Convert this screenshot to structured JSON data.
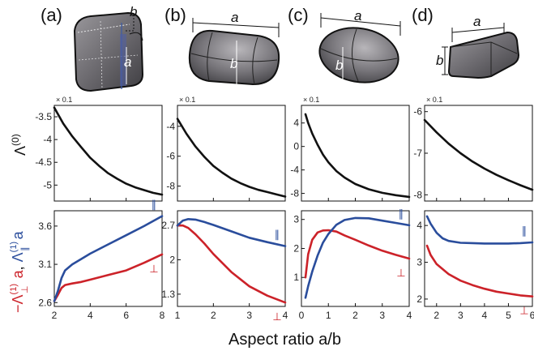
{
  "figure": {
    "panel_labels": [
      "(a)",
      "(b)",
      "(c)",
      "(d)"
    ],
    "shape_labels": {
      "a": "a",
      "b": "b"
    },
    "row0_ylabel": {
      "main": "Λ",
      "sup": "(0)"
    },
    "row1_ylabel": {
      "red_main": "−Λ",
      "red_sup": "(1)",
      "red_sub": "⊥",
      "red_tail": " a",
      "sep": ", ",
      "blue_main": "Λ",
      "blue_sup": "(1)",
      "blue_sub": "∥",
      "blue_tail": " a"
    },
    "xlabel": "Aspect ratio a/b",
    "multiplier": "× 0.1",
    "marker_parallel": "∥",
    "marker_perp": "⊥"
  },
  "colors": {
    "black": "#111111",
    "red": "#cc2229",
    "blue": "#2a4d9c",
    "shape": "#6f6d72"
  },
  "chart_data": [
    {
      "panel": "(a)",
      "row": 0,
      "type": "line",
      "xlim": [
        2,
        8
      ],
      "ylim": [
        -5.35,
        -3.25
      ],
      "yticks": [
        -3.5,
        -4,
        -4.5,
        -5
      ],
      "yticklabels": [
        "-3.5",
        "-4",
        "-4.5",
        "-5"
      ],
      "xticks": [
        2,
        4,
        6,
        8
      ],
      "multiplier": "× 0.1",
      "series": [
        {
          "color": "black",
          "x": [
            2,
            2.5,
            3,
            3.5,
            4,
            4.5,
            5,
            5.5,
            6,
            6.5,
            7,
            7.5,
            8
          ],
          "y": [
            -3.3,
            -3.65,
            -3.93,
            -4.17,
            -4.4,
            -4.58,
            -4.74,
            -4.86,
            -4.97,
            -5.05,
            -5.11,
            -5.17,
            -5.21
          ]
        }
      ]
    },
    {
      "panel": "(b)",
      "row": 0,
      "type": "line",
      "xlim": [
        1,
        4
      ],
      "ylim": [
        -9.0,
        -2.6
      ],
      "yticks": [
        -4,
        -6,
        -8
      ],
      "yticklabels": [
        "-4",
        "-6",
        "-8"
      ],
      "xticks": [
        1,
        2,
        3,
        4
      ],
      "multiplier": "× 0.1",
      "series": [
        {
          "color": "black",
          "x": [
            1,
            1.25,
            1.5,
            1.75,
            2,
            2.25,
            2.5,
            2.75,
            3,
            3.25,
            3.5,
            3.75,
            4
          ],
          "y": [
            -3.5,
            -4.5,
            -5.35,
            -6.05,
            -6.65,
            -7.1,
            -7.5,
            -7.8,
            -8.05,
            -8.25,
            -8.4,
            -8.55,
            -8.7
          ]
        }
      ]
    },
    {
      "panel": "(c)",
      "row": 0,
      "type": "line",
      "xlim": [
        0,
        4
      ],
      "ylim": [
        -9.3,
        7.0
      ],
      "yticks": [
        4,
        0,
        -4,
        -8
      ],
      "yticklabels": [
        "4",
        "0",
        "-4",
        "-8"
      ],
      "xticks": [
        0,
        1,
        2,
        3,
        4
      ],
      "multiplier": "× 0.1",
      "series": [
        {
          "color": "black",
          "x": [
            0.15,
            0.25,
            0.4,
            0.6,
            0.8,
            1.0,
            1.3,
            1.6,
            2.0,
            2.5,
            3.0,
            3.5,
            4.0
          ],
          "y": [
            5.5,
            4.0,
            2.2,
            0.3,
            -1.4,
            -2.7,
            -4.2,
            -5.3,
            -6.4,
            -7.3,
            -7.9,
            -8.3,
            -8.6
          ]
        }
      ]
    },
    {
      "panel": "(d)",
      "row": 0,
      "type": "line",
      "xlim": [
        1.5,
        6
      ],
      "ylim": [
        -8.15,
        -5.85
      ],
      "yticks": [
        -6,
        -7,
        -8
      ],
      "yticklabels": [
        "-6",
        "-7",
        "-8"
      ],
      "xticks": [
        2,
        3,
        4,
        5,
        6
      ],
      "multiplier": "× 0.1",
      "series": [
        {
          "color": "black",
          "x": [
            1.5,
            2,
            2.5,
            3,
            3.5,
            4,
            4.5,
            5,
            5.5,
            6
          ],
          "y": [
            -6.2,
            -6.5,
            -6.77,
            -7.0,
            -7.2,
            -7.37,
            -7.52,
            -7.65,
            -7.77,
            -7.88
          ]
        }
      ]
    },
    {
      "panel": "(a)",
      "row": 1,
      "type": "line",
      "xlim": [
        2,
        8
      ],
      "ylim": [
        2.55,
        3.8
      ],
      "yticks": [
        2.6,
        3.1,
        3.6
      ],
      "yticklabels": [
        "2.6",
        "3.1",
        "3.6"
      ],
      "xticks": [
        2,
        4,
        6,
        8
      ],
      "xticklabels": [
        "2",
        "4",
        "6",
        "8"
      ],
      "series": [
        {
          "name": "⊥",
          "color": "red",
          "x": [
            2,
            2.2,
            2.4,
            2.6,
            3,
            3.5,
            4,
            5,
            6,
            7,
            8
          ],
          "y": [
            2.62,
            2.7,
            2.79,
            2.83,
            2.85,
            2.87,
            2.9,
            2.96,
            3.02,
            3.12,
            3.23
          ]
        },
        {
          "name": "∥",
          "color": "blue",
          "x": [
            2,
            2.2,
            2.4,
            2.6,
            3,
            3.5,
            4,
            5,
            6,
            7,
            8
          ],
          "y": [
            2.62,
            2.75,
            2.92,
            3.02,
            3.1,
            3.17,
            3.24,
            3.36,
            3.48,
            3.6,
            3.73
          ]
        }
      ]
    },
    {
      "panel": "(b)",
      "row": 1,
      "type": "line",
      "xlim": [
        1,
        4
      ],
      "ylim": [
        1.05,
        3.0
      ],
      "yticks": [
        1.3,
        2,
        2.7
      ],
      "yticklabels": [
        "1.3",
        "2",
        "2.7"
      ],
      "xticks": [
        1,
        2,
        3,
        4
      ],
      "xticklabels": [
        "1",
        "2",
        "3",
        "4"
      ],
      "series": [
        {
          "name": "⊥",
          "color": "red",
          "x": [
            1,
            1.15,
            1.3,
            1.5,
            1.75,
            2,
            2.5,
            3,
            3.5,
            4
          ],
          "y": [
            2.7,
            2.7,
            2.65,
            2.52,
            2.33,
            2.12,
            1.75,
            1.46,
            1.27,
            1.13
          ]
        },
        {
          "name": "∥",
          "color": "blue",
          "x": [
            1,
            1.15,
            1.3,
            1.5,
            1.75,
            2,
            2.5,
            3,
            3.5,
            4
          ],
          "y": [
            2.7,
            2.8,
            2.83,
            2.82,
            2.77,
            2.71,
            2.58,
            2.45,
            2.36,
            2.28
          ]
        }
      ]
    },
    {
      "panel": "(c)",
      "row": 1,
      "type": "line",
      "xlim": [
        0,
        4
      ],
      "ylim": [
        0.0,
        3.3
      ],
      "yticks": [
        1,
        2,
        3
      ],
      "yticklabels": [
        "1",
        "2",
        "3"
      ],
      "xticks": [
        0,
        1,
        2,
        3,
        4
      ],
      "xticklabels": [
        "0",
        "1",
        "2",
        "3",
        "4"
      ],
      "series": [
        {
          "name": "⊥",
          "color": "red",
          "x": [
            0.15,
            0.25,
            0.4,
            0.6,
            0.8,
            1.0,
            1.3,
            1.6,
            2.0,
            2.5,
            3.0,
            3.5,
            4.0
          ],
          "y": [
            1.0,
            1.8,
            2.3,
            2.55,
            2.62,
            2.63,
            2.58,
            2.45,
            2.3,
            2.1,
            1.92,
            1.78,
            1.65
          ]
        },
        {
          "name": "∥",
          "color": "blue",
          "x": [
            0.15,
            0.25,
            0.4,
            0.6,
            0.8,
            1.0,
            1.3,
            1.6,
            2.0,
            2.5,
            3.0,
            3.5,
            4.0
          ],
          "y": [
            0.3,
            0.7,
            1.2,
            1.75,
            2.2,
            2.5,
            2.82,
            2.98,
            3.05,
            3.04,
            2.96,
            2.88,
            2.8
          ]
        }
      ]
    },
    {
      "panel": "(d)",
      "row": 1,
      "type": "line",
      "xlim": [
        1.5,
        6
      ],
      "ylim": [
        1.8,
        4.4
      ],
      "yticks": [
        2,
        3,
        4
      ],
      "yticklabels": [
        "2",
        "3",
        "4"
      ],
      "xticks": [
        2,
        3,
        4,
        5,
        6
      ],
      "xticklabels": [
        "2",
        "3",
        "4",
        "5",
        "6"
      ],
      "series": [
        {
          "name": "⊥",
          "color": "red",
          "x": [
            1.6,
            1.75,
            2,
            2.5,
            3,
            3.5,
            4,
            4.5,
            5,
            5.5,
            6
          ],
          "y": [
            3.45,
            3.2,
            2.95,
            2.68,
            2.5,
            2.38,
            2.28,
            2.2,
            2.15,
            2.1,
            2.07
          ]
        },
        {
          "name": "∥",
          "color": "blue",
          "x": [
            1.6,
            1.75,
            2,
            2.25,
            2.5,
            3,
            3.5,
            4,
            4.5,
            5,
            5.5,
            6
          ],
          "y": [
            4.25,
            4.05,
            3.8,
            3.65,
            3.58,
            3.53,
            3.52,
            3.51,
            3.51,
            3.51,
            3.52,
            3.54
          ]
        }
      ]
    }
  ]
}
